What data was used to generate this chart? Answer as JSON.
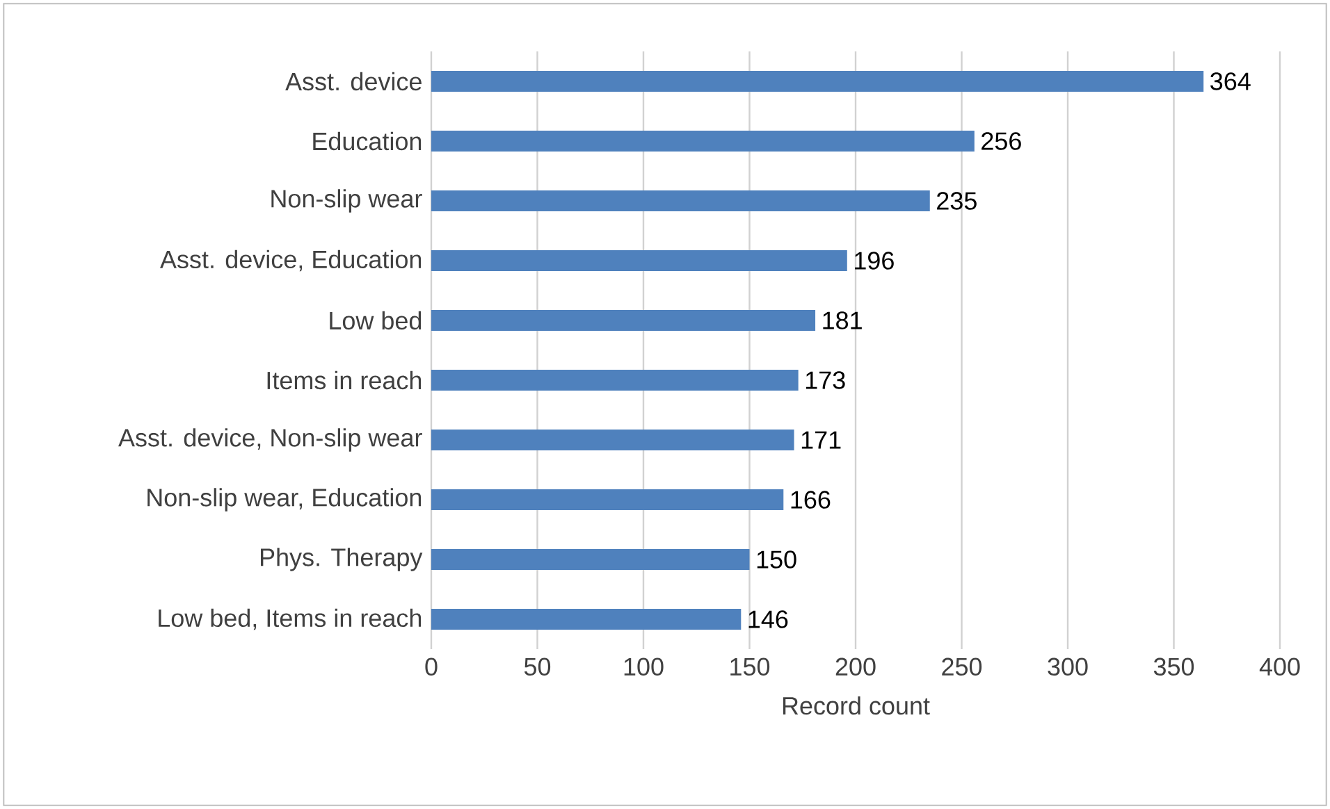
{
  "chart_data": {
    "type": "bar",
    "orientation": "horizontal",
    "xlabel": "Record count",
    "categories": [
      "Asst. device",
      "Education",
      "Non-slip wear",
      "Asst. device, Education",
      "Low bed",
      "Items in reach",
      "Asst. device, Non-slip wear",
      "Non-slip wear, Education",
      "Phys. Therapy",
      "Low bed, Items in reach"
    ],
    "values": [
      364,
      256,
      235,
      196,
      181,
      173,
      171,
      166,
      150,
      146
    ],
    "color": "#4f81bd",
    "xlim": [
      0,
      400
    ],
    "xticks": [
      0,
      50,
      100,
      150,
      200,
      250,
      300,
      350,
      400
    ],
    "grid": "x",
    "data_labels": true
  }
}
